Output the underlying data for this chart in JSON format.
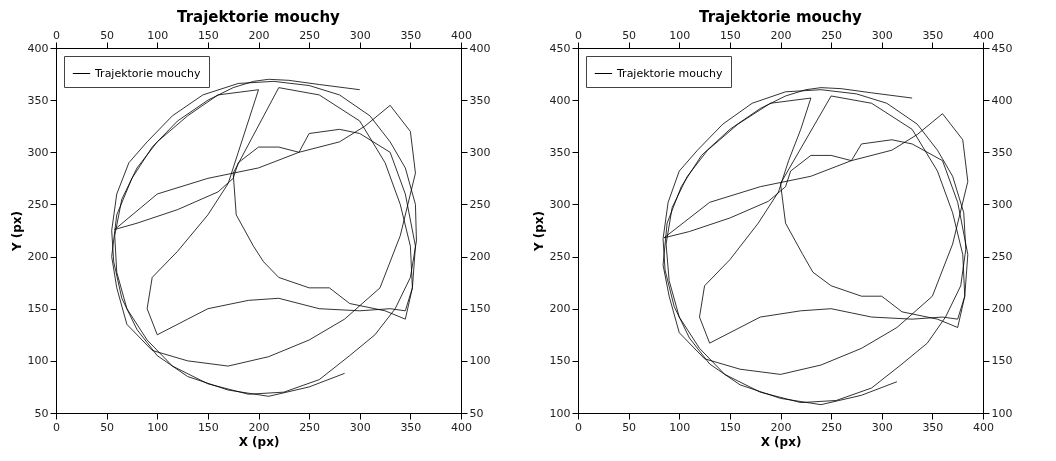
{
  "chart_data": [
    {
      "type": "line",
      "title": "Trajektorie mouchy",
      "xlabel": "X (px)",
      "ylabel": "Y (px)",
      "xlim": [
        0,
        400
      ],
      "ylim": [
        50,
        400
      ],
      "xticks": [
        0,
        50,
        100,
        150,
        200,
        250,
        300,
        350,
        400
      ],
      "yticks": [
        50,
        100,
        150,
        200,
        250,
        300,
        350,
        400
      ],
      "x2lim": [
        0,
        400
      ],
      "x2ticks": [
        0,
        50,
        100,
        150,
        200,
        250,
        300,
        350,
        400
      ],
      "y2lim": [
        50,
        400
      ],
      "y2ticks": [
        50,
        100,
        150,
        200,
        250,
        300,
        350,
        400
      ],
      "grid": false,
      "legend": "top left",
      "series": [
        {
          "name": "Trajektorie mouchy",
          "color": "#000000",
          "x": [
            285,
            250,
            210,
            170,
            130,
            100,
            80,
            65,
            57,
            55,
            60,
            72,
            90,
            115,
            145,
            180,
            215,
            250,
            280,
            310,
            330,
            345,
            355,
            356,
            350,
            335,
            315,
            290,
            260,
            225,
            190,
            150,
            115,
            90,
            70,
            60,
            58,
            65,
            80,
            100,
            130,
            160,
            200,
            190,
            180,
            170,
            150,
            120,
            95,
            90,
            100,
            130,
            150,
            190,
            220,
            240,
            260,
            300,
            330,
            345,
            352,
            350,
            340,
            325,
            300,
            260,
            220,
            175,
            178,
            195,
            205,
            220,
            250,
            270,
            290,
            325,
            345,
            352,
            355,
            345,
            330,
            300,
            280,
            250,
            240,
            220,
            200,
            180,
            175,
            160,
            120,
            80,
            58,
            100,
            150,
            200,
            240,
            280,
            305,
            330,
            350,
            355,
            340,
            320,
            285,
            250,
            210,
            170,
            130,
            95,
            70,
            60,
            55,
            60,
            75,
            95,
            120,
            150,
            175,
            195,
            210,
            230,
            260,
            300
          ],
          "values": [
            88,
            75,
            66,
            72,
            85,
            105,
            130,
            160,
            195,
            225,
            260,
            290,
            310,
            335,
            355,
            366,
            368,
            364,
            355,
            335,
            310,
            285,
            250,
            215,
            180,
            150,
            125,
            105,
            82,
            70,
            68,
            78,
            95,
            120,
            150,
            185,
            220,
            255,
            285,
            310,
            335,
            355,
            360,
            330,
            300,
            270,
            240,
            205,
            180,
            150,
            125,
            140,
            150,
            158,
            160,
            155,
            150,
            148,
            150,
            148,
            170,
            210,
            250,
            290,
            330,
            355,
            362,
            280,
            240,
            210,
            195,
            180,
            170,
            170,
            155,
            148,
            140,
            170,
            210,
            260,
            300,
            318,
            322,
            318,
            300,
            305,
            305,
            290,
            275,
            262,
            245,
            232,
            226,
            260,
            275,
            285,
            300,
            310,
            325,
            345,
            320,
            280,
            220,
            170,
            140,
            120,
            104,
            95,
            100,
            110,
            135,
            170,
            200,
            240,
            275,
            305,
            330,
            350,
            362,
            368,
            370,
            369,
            365,
            360
          ]
        }
      ]
    },
    {
      "type": "line",
      "title": "Trajektorie mouchy",
      "xlabel": "X (px)",
      "ylabel": "Y (px)",
      "xlim": [
        0,
        400
      ],
      "ylim": [
        100,
        450
      ],
      "xticks": [
        0,
        50,
        100,
        150,
        200,
        250,
        300,
        350,
        400
      ],
      "yticks": [
        100,
        150,
        200,
        250,
        300,
        350,
        400,
        450
      ],
      "x2lim": [
        0,
        400
      ],
      "x2ticks": [
        0,
        50,
        100,
        150,
        200,
        250,
        300,
        350,
        400
      ],
      "y2lim": [
        100,
        450
      ],
      "y2ticks": [
        100,
        150,
        200,
        250,
        300,
        350,
        400,
        450
      ],
      "grid": false,
      "legend": "top left",
      "series": [
        {
          "name": "Trajektorie mouchy",
          "color": "#000000",
          "x": [
            315,
            280,
            240,
            200,
            160,
            130,
            110,
            95,
            86,
            84,
            89,
            100,
            118,
            143,
            172,
            205,
            240,
            275,
            305,
            335,
            355,
            370,
            381,
            383,
            378,
            363,
            345,
            320,
            290,
            255,
            220,
            180,
            145,
            120,
            100,
            90,
            87,
            93,
            108,
            128,
            158,
            190,
            230,
            220,
            208,
            198,
            178,
            150,
            125,
            120,
            130,
            160,
            180,
            220,
            250,
            270,
            290,
            330,
            360,
            375,
            382,
            380,
            370,
            355,
            330,
            290,
            250,
            200,
            205,
            222,
            232,
            250,
            280,
            300,
            320,
            355,
            375,
            382,
            385,
            375,
            360,
            330,
            310,
            280,
            270,
            250,
            230,
            210,
            205,
            188,
            150,
            110,
            85,
            130,
            180,
            230,
            270,
            310,
            335,
            360,
            380,
            385,
            370,
            350,
            315,
            280,
            240,
            200,
            160,
            125,
            100,
            90,
            84,
            88,
            102,
            122,
            150,
            180,
            205,
            225,
            240,
            260,
            290,
            330
          ],
          "values": [
            130,
            117,
            108,
            114,
            127,
            147,
            172,
            202,
            237,
            267,
            302,
            332,
            352,
            377,
            397,
            408,
            410,
            406,
            397,
            377,
            352,
            327,
            292,
            257,
            222,
            192,
            167,
            147,
            124,
            112,
            110,
            120,
            137,
            162,
            192,
            227,
            262,
            297,
            327,
            352,
            377,
            397,
            402,
            372,
            342,
            312,
            282,
            247,
            222,
            192,
            167,
            182,
            192,
            198,
            200,
            196,
            192,
            190,
            192,
            190,
            212,
            252,
            292,
            332,
            372,
            397,
            404,
            320,
            282,
            252,
            235,
            222,
            212,
            212,
            197,
            190,
            182,
            212,
            252,
            302,
            342,
            358,
            362,
            358,
            342,
            347,
            347,
            332,
            317,
            303,
            287,
            274,
            268,
            302,
            317,
            327,
            342,
            352,
            367,
            387,
            362,
            322,
            262,
            212,
            182,
            162,
            146,
            137,
            142,
            152,
            177,
            212,
            242,
            282,
            317,
            347,
            372,
            392,
            404,
            410,
            412,
            411,
            407,
            402
          ]
        }
      ]
    }
  ]
}
